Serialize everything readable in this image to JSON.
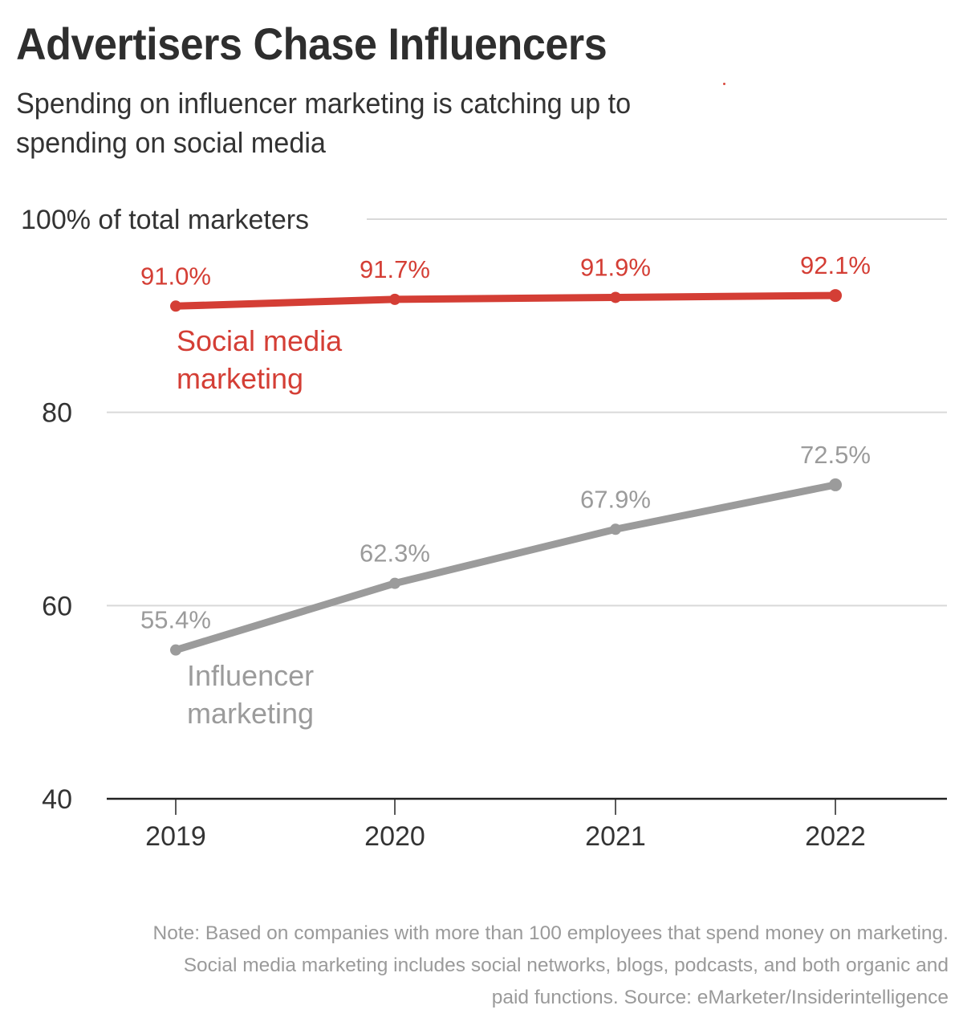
{
  "header": {
    "title": "Advertisers Chase Influencers",
    "subtitle": "Spending on influencer marketing is catching up to spending on social media"
  },
  "footer": {
    "note": "Note: Based on companies with more than 100 employees that spend money on marketing. Social media marketing includes social networks, blogs, podcasts, and both organic and paid functions. Source: eMarketer/Insiderintelligence"
  },
  "colors": {
    "social": "#d43e35",
    "influencer": "#9b9b9b",
    "axis_text": "#333333",
    "gridline": "#d9d9d9",
    "baseline": "#222222"
  },
  "chart_data": {
    "type": "line",
    "title": "Advertisers Chase Influencers",
    "subtitle": "Spending on influencer marketing is catching up to spending on social media",
    "xlabel": "",
    "ylabel": "% of total marketers",
    "categories": [
      "2019",
      "2020",
      "2021",
      "2022"
    ],
    "ylim": [
      40,
      100
    ],
    "yticks": [
      40,
      60,
      80,
      100
    ],
    "ytick_labels": [
      "40",
      "60",
      "80",
      "100% of total marketers"
    ],
    "grid": true,
    "legend": "inline-labels",
    "series": [
      {
        "name": "Social media marketing",
        "label_lines": [
          "Social media",
          "marketing"
        ],
        "color": "#d43e35",
        "values": [
          91.0,
          91.7,
          91.9,
          92.1
        ],
        "data_labels": [
          "91.0%",
          "91.7%",
          "91.9%",
          "92.1%"
        ]
      },
      {
        "name": "Influencer marketing",
        "label_lines": [
          "Influencer",
          "marketing"
        ],
        "color": "#9b9b9b",
        "values": [
          55.4,
          62.3,
          67.9,
          72.5
        ],
        "data_labels": [
          "55.4%",
          "62.3%",
          "67.9%",
          "72.5%"
        ]
      }
    ],
    "note": "Note: Based on companies with more than 100 employees that spend money on marketing. Social media marketing includes social networks, blogs, podcasts, and both organic and paid functions. Source: eMarketer/Insiderintelligence"
  }
}
